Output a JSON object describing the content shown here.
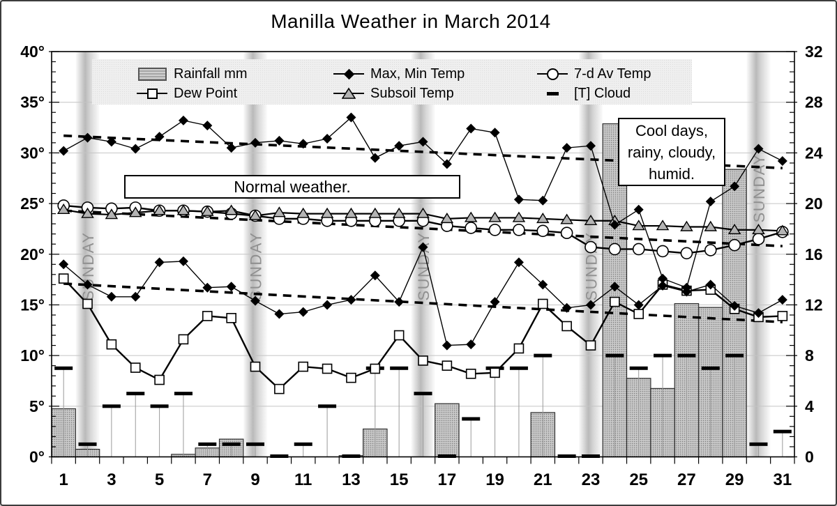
{
  "title": "Manilla Weather in March 2014",
  "legend": {
    "items": [
      {
        "label": "Rainfall mm",
        "glyph": "hatched-bar-swatch"
      },
      {
        "label": "Max, Min Temp",
        "glyph": "diamond-marker"
      },
      {
        "label": "7-d Av Temp",
        "glyph": "circle-marker"
      },
      {
        "label": "Dew Point",
        "glyph": "square-marker"
      },
      {
        "label": "Subsoil Temp",
        "glyph": "triangle-marker"
      },
      {
        "label": "[T] Cloud",
        "glyph": "dash-marker"
      }
    ]
  },
  "annotations": {
    "normal": {
      "text": "Normal weather."
    },
    "cool": {
      "lines": [
        "Cool days,",
        "rainy, cloudy,",
        "humid."
      ]
    }
  },
  "chart_data": {
    "type": "combo-bar-line",
    "title": "Manilla Weather in March 2014",
    "n_days": 31,
    "x_tick_labels": [
      1,
      3,
      5,
      7,
      9,
      11,
      13,
      15,
      17,
      19,
      21,
      23,
      25,
      27,
      29,
      31
    ],
    "left_axis": {
      "min": 0,
      "max": 40,
      "tick_step": 5,
      "minor_step": 1,
      "labels": [
        "0°",
        "5°",
        "10°",
        "15°",
        "20°",
        "25°",
        "30°",
        "35°",
        "40°"
      ]
    },
    "right_axis": {
      "min": 0,
      "max": 32,
      "tick_step": 4,
      "minor_step": 0.8,
      "labels": [
        "0",
        "4",
        "8",
        "12",
        "16",
        "20",
        "24",
        "28",
        "32"
      ]
    },
    "sundays": {
      "label": "SUNDAY",
      "days": [
        2,
        9,
        16,
        23,
        30
      ]
    },
    "series": [
      {
        "name": "Rainfall mm",
        "type": "bar",
        "axis": "right",
        "values": [
          3.8,
          0.6,
          0,
          0,
          0,
          0.2,
          0.7,
          1.4,
          0,
          0,
          0,
          0,
          0.1,
          2.2,
          0,
          0,
          4.2,
          0,
          0,
          0,
          3.5,
          0,
          0,
          26.3,
          6.2,
          5.4,
          12.1,
          11.8,
          22.7,
          0,
          0
        ]
      },
      {
        "name": "[T] Cloud",
        "type": "dash",
        "axis": "right",
        "values": [
          7,
          1,
          4,
          5,
          4,
          5,
          1,
          1,
          1,
          0,
          1,
          4,
          0,
          7,
          7,
          5,
          0,
          3,
          7,
          7,
          8,
          0,
          0,
          8,
          7,
          8,
          8,
          7,
          8,
          1,
          2
        ]
      },
      {
        "name": "Subsoil Temp",
        "type": "line",
        "marker": "triangle",
        "axis": "left",
        "values": [
          24.4,
          24.0,
          23.9,
          24.1,
          24.3,
          24.3,
          24.2,
          24.3,
          23.8,
          24.1,
          24.0,
          24.0,
          24.0,
          24.0,
          24.0,
          24.0,
          23.5,
          23.6,
          23.6,
          23.6,
          23.5,
          23.4,
          23.3,
          23.3,
          22.8,
          22.8,
          22.7,
          22.7,
          22.4,
          22.4,
          22.3
        ]
      },
      {
        "name": "7-d Av Temp",
        "type": "line",
        "marker": "circle",
        "axis": "left",
        "values": [
          24.8,
          24.6,
          24.5,
          24.6,
          24.3,
          24.3,
          24.2,
          24.0,
          23.8,
          23.5,
          23.5,
          23.3,
          23.3,
          23.3,
          23.3,
          23.3,
          22.8,
          22.6,
          22.4,
          22.4,
          22.3,
          22.1,
          20.7,
          20.5,
          20.5,
          20.3,
          20.1,
          20.4,
          20.9,
          21.5,
          22.2
        ]
      },
      {
        "name": "Dew Point",
        "type": "line",
        "marker": "square",
        "axis": "left",
        "values": [
          17.6,
          15.1,
          11.1,
          8.8,
          7.6,
          11.6,
          13.9,
          13.7,
          8.9,
          6.7,
          8.9,
          8.7,
          7.8,
          8.7,
          12.0,
          9.5,
          9.0,
          8.2,
          8.3,
          10.7,
          15.1,
          12.9,
          11.0,
          15.3,
          14.1,
          17.0,
          16.4,
          16.5,
          14.6,
          13.8,
          13.9
        ]
      },
      {
        "name": "Max Temp",
        "type": "line",
        "marker": "diamond",
        "axis": "left",
        "values": [
          30.2,
          31.5,
          31.1,
          30.4,
          31.6,
          33.2,
          32.7,
          30.5,
          31.0,
          31.2,
          30.9,
          31.4,
          33.5,
          29.5,
          30.7,
          31.1,
          28.9,
          32.4,
          32.0,
          25.4,
          25.3,
          30.5,
          30.7,
          22.9,
          24.4,
          17.6,
          16.7,
          25.2,
          26.7,
          30.4,
          29.2
        ]
      },
      {
        "name": "Min Temp",
        "type": "line",
        "marker": "diamond",
        "axis": "left",
        "values": [
          19.0,
          17.0,
          15.8,
          15.8,
          19.2,
          19.3,
          16.7,
          16.8,
          15.4,
          14.1,
          14.3,
          15.0,
          15.5,
          17.9,
          15.3,
          20.7,
          11.0,
          11.1,
          15.3,
          19.2,
          17.0,
          14.7,
          15.0,
          16.8,
          15.0,
          16.9,
          16.3,
          17.0,
          14.9,
          14.2,
          15.5
        ]
      }
    ],
    "trend_lines": [
      {
        "name": "max-temp-normal",
        "style": "dashed",
        "start": 31.7,
        "end": 28.5
      },
      {
        "name": "mean-temp-normal",
        "style": "dashed",
        "start": 24.3,
        "end": 20.8
      },
      {
        "name": "min-temp-normal",
        "style": "dashed",
        "start": 17.1,
        "end": 13.3
      }
    ],
    "colors": {
      "gridline": "#c4c4c4",
      "sunday_band": "#b6b6b6",
      "sunday_text": "#909090",
      "bar_fill": "#c9c9c9",
      "bar_dot": "#7d7d7d",
      "stem": "#9a9a9a",
      "ink": "#000000"
    }
  }
}
